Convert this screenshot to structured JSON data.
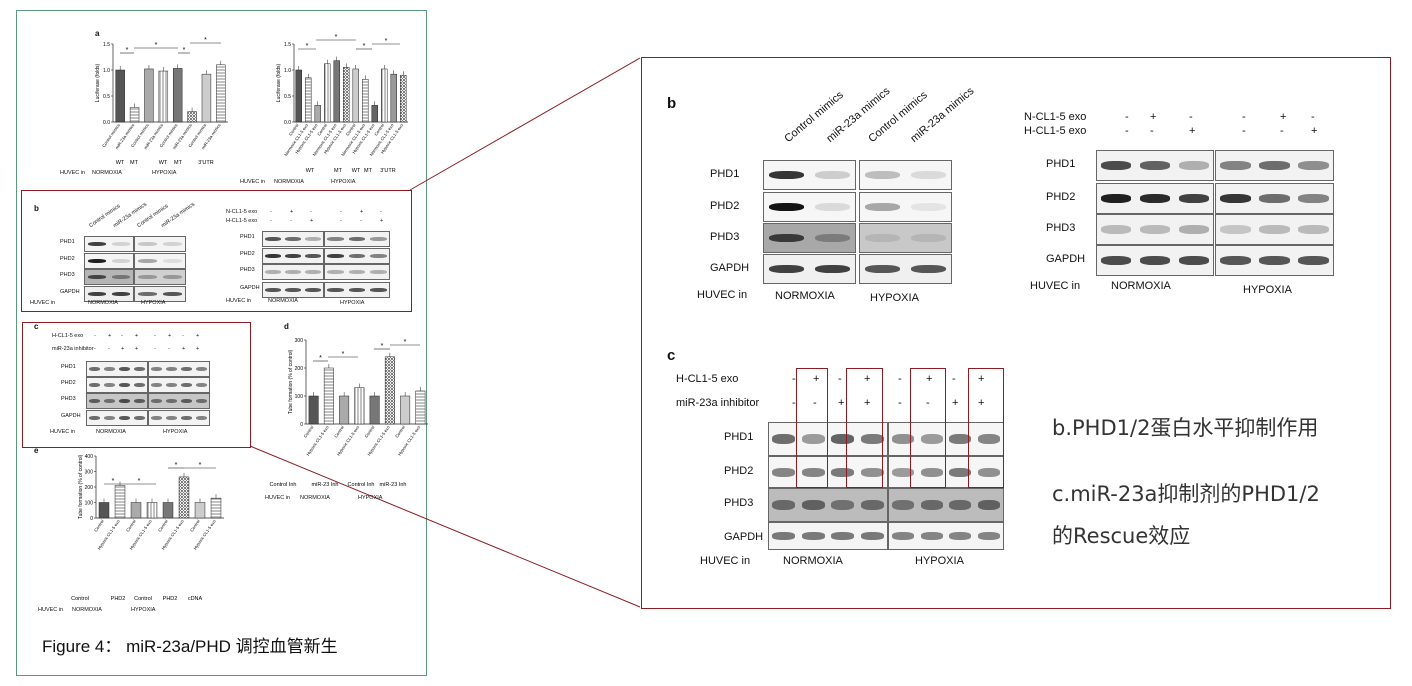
{
  "figure_caption": "Figure 4： miR-23a/PHD 调控血管新生",
  "annotations": {
    "b": "b.PHD1/2蛋白水平抑制作用",
    "c_line1": "c.miR-23a抑制剂的PHD1/2",
    "c_line2": "的Rescue效应"
  },
  "colors": {
    "frame_green": "#5a9a7a",
    "highlight_red": "#8b1c22"
  },
  "panel_letters": {
    "a": "a",
    "b": "b",
    "c": "c",
    "d": "d",
    "e": "e"
  },
  "common": {
    "huvec_in": "HUVEC in",
    "normoxia": "NORMOXIA",
    "hypoxia": "HYPOXIA",
    "phd1": "PHD1",
    "phd2": "PHD2",
    "phd3": "PHD3",
    "gapdh": "GAPDH",
    "plus": "+",
    "minus": "-",
    "star": "*"
  },
  "panel_a": {
    "ylabel": "Luciferase (folds)",
    "left": {
      "yticks": [
        "0.0",
        "0.5",
        "1.0",
        "1.5"
      ],
      "bars": [
        "Control mimics",
        "miR-23a mimics",
        "Control mimics",
        "miR-23a mimics",
        "Control mimics",
        "miR-23a mimics",
        "Control mimics",
        "miR-23a mimics"
      ],
      "values": [
        1.0,
        0.28,
        1.02,
        0.98,
        1.03,
        0.2,
        0.92,
        1.1
      ],
      "groups": [
        "WT",
        "MT",
        "WT",
        "MT",
        "3'UTR"
      ]
    },
    "right": {
      "yticks": [
        "0.0",
        "0.5",
        "1.0",
        "1.5"
      ],
      "bars": [
        "Control",
        "Normoxic CL1-5 exo",
        "Hypoxic CL1-5 exo",
        "Control",
        "Normoxic CL1-5 exo",
        "Hypoxic CL1-5 exo",
        "Control",
        "Normoxic CL1-5 exo",
        "Hypoxic CL1-5 exo",
        "Control",
        "Normoxic CL1-5 exo",
        "Hypoxic CL1-5 exo"
      ],
      "values": [
        1.0,
        0.85,
        0.32,
        1.12,
        1.18,
        1.05,
        1.02,
        0.82,
        0.32,
        1.02,
        0.92,
        0.9
      ],
      "groups": [
        "WT",
        "MT",
        "WT",
        "MT",
        "3'UTR"
      ]
    }
  },
  "panel_b_small": {
    "mimics": [
      "Control mimics",
      "miR-23a mimics",
      "Control mimics",
      "miR-23a mimics"
    ],
    "ncl_label": "N-CL1-5 exo",
    "hcl_label": "H-CL1-5 exo",
    "ncl_signs": [
      "-",
      "+",
      "-",
      "-",
      "+",
      "-"
    ],
    "hcl_signs": [
      "-",
      "-",
      "+",
      "-",
      "-",
      "+"
    ]
  },
  "panel_c_small": {
    "hcl_label": "H-CL1-5 exo",
    "inh_label": "miR-23a inhibitor",
    "hcl_signs": [
      "-",
      "+",
      "-",
      "+",
      "-",
      "+",
      "-",
      "+"
    ],
    "inh_signs": [
      "-",
      "-",
      "+",
      "+",
      "-",
      "-",
      "+",
      "+"
    ]
  },
  "panel_d": {
    "ylabel": "Tube formation (% of control)",
    "yticks": [
      "0",
      "100",
      "200",
      "300"
    ],
    "bars": [
      "Control",
      "Hypoxic CL1-5 exo",
      "Control",
      "Hypoxic CL1-5 exo",
      "Control",
      "Hypoxic CL1-5 exo",
      "Control",
      "Hypoxic CL1-5 exo"
    ],
    "values": [
      100,
      200,
      100,
      130,
      100,
      240,
      100,
      118
    ],
    "groups": [
      "Control Inh",
      "miR-23 Inh",
      "Control Inh",
      "miR-23 Inh"
    ]
  },
  "panel_e": {
    "ylabel": "Tube formation (% of control)",
    "yticks": [
      "0",
      "100",
      "200",
      "300",
      "400"
    ],
    "bars": [
      "Control",
      "Hypoxic CL1-5 exo",
      "Control",
      "Hypoxic CL1-5 exo",
      "Control",
      "Hypoxic CL1-5 exo",
      "Control",
      "Hypoxic CL1-5 exo"
    ],
    "values": [
      100,
      210,
      100,
      100,
      100,
      265,
      100,
      128
    ],
    "groups": [
      "Control",
      "PHD2",
      "Control",
      "PHD2",
      "cDNA"
    ]
  },
  "zoom_b": {
    "mimics": [
      "Control mimics",
      "miR-23a mimics",
      "Control mimics",
      "miR-23a mimics"
    ],
    "ncl_label": "N-CL1-5 exo",
    "hcl_label": "H-CL1-5 exo",
    "ncl_signs": [
      "-",
      "+",
      "-",
      "-",
      "+",
      "-"
    ],
    "hcl_signs": [
      "-",
      "-",
      "+",
      "-",
      "-",
      "+"
    ]
  },
  "zoom_c": {
    "hcl_label": "H-CL1-5 exo",
    "inh_label": "miR-23a inhibitor",
    "hcl_signs": [
      "-",
      "+",
      "-",
      "+",
      "-",
      "+",
      "-",
      "+"
    ],
    "inh_signs": [
      "-",
      "-",
      "+",
      "+",
      "-",
      "-",
      "+",
      "+"
    ]
  }
}
